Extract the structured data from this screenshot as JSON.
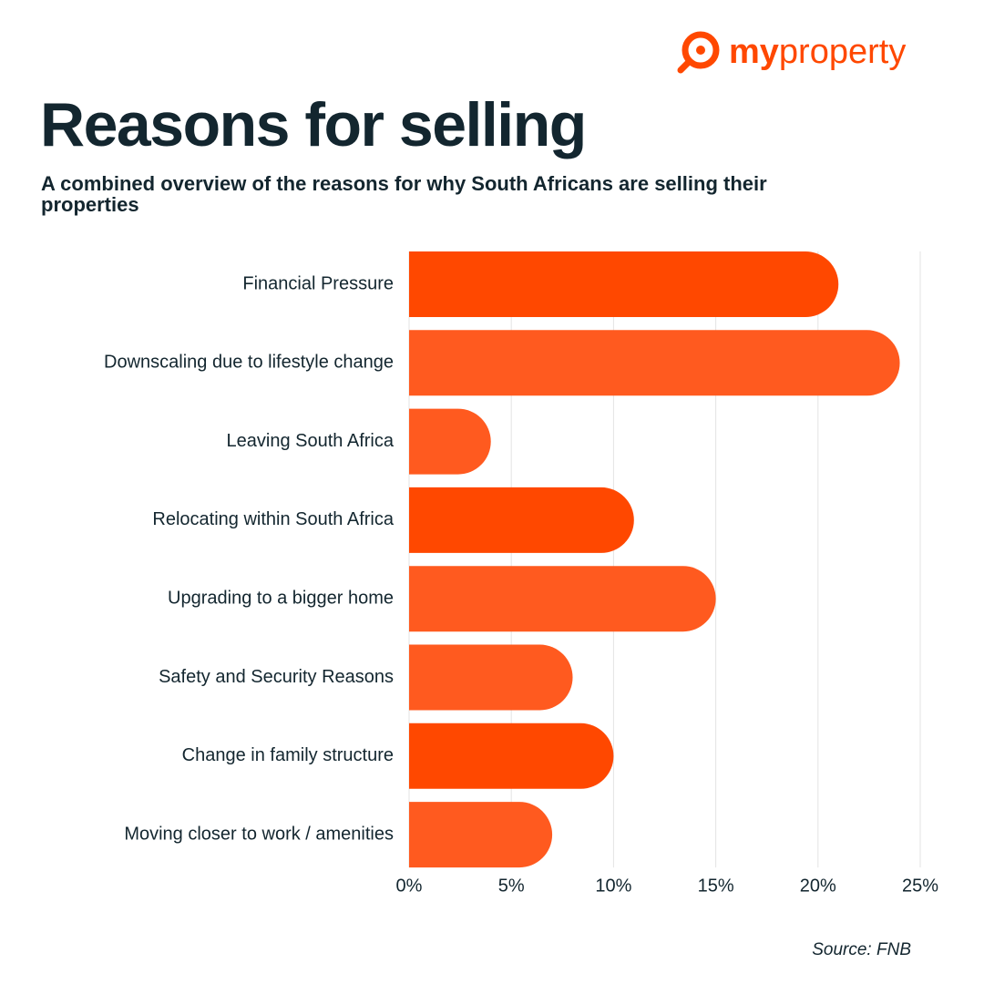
{
  "logo": {
    "bold": "my",
    "regular": "property"
  },
  "source": "Source: FNB",
  "chart_data": {
    "type": "hbar",
    "title": "Reasons for selling",
    "subtitle": "A combined overview of the reasons for why South Africans are selling their properties",
    "categories": [
      "Financial Pressure",
      "Downscaling due to lifestyle change",
      "Leaving South Africa",
      "Relocating within South Africa",
      "Upgrading to a bigger home",
      "Safety and Security Reasons",
      "Change in family structure",
      "Moving closer to work / amenities"
    ],
    "values": [
      21,
      24,
      4,
      11,
      15,
      8,
      10,
      7
    ],
    "colors": [
      "#ff4800",
      "#ff5a1f",
      "#ff5a1f",
      "#ff4800",
      "#ff5a1f",
      "#ff5a1f",
      "#ff4800",
      "#ff5a1f"
    ],
    "xlim": [
      0,
      25
    ],
    "xticks": [
      {
        "value": 0,
        "label": "0%"
      },
      {
        "value": 5,
        "label": "5%"
      },
      {
        "value": 10,
        "label": "10%"
      },
      {
        "value": 15,
        "label": "15%"
      },
      {
        "value": 20,
        "label": "20%"
      },
      {
        "value": 25,
        "label": "25%"
      }
    ],
    "grid": true
  }
}
